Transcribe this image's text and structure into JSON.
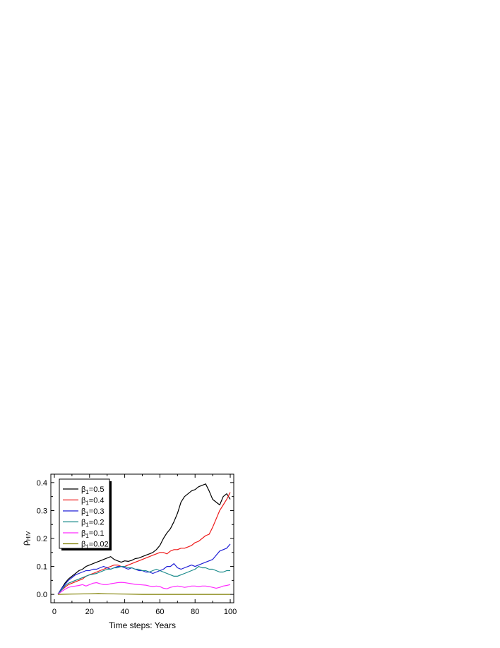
{
  "chart_data": {
    "type": "line",
    "xlabel": "Time steps: Years",
    "ylabel": {
      "main": "ρ",
      "sub": "HIV"
    },
    "xlim": [
      -2,
      102
    ],
    "ylim": [
      -0.03,
      0.43
    ],
    "xticks": [
      0,
      20,
      40,
      60,
      80,
      100
    ],
    "yticks": [
      0.0,
      0.1,
      0.2,
      0.3,
      0.4
    ],
    "xtick_labels": [
      "0",
      "20",
      "40",
      "60",
      "80",
      "100"
    ],
    "ytick_labels": [
      "0.0",
      "0.1",
      "0.2",
      "0.3",
      "0.4"
    ],
    "legend_position": "top-left",
    "series": [
      {
        "name": "β1=0.5",
        "label_main": "β",
        "label_sub": "1",
        "label_rest": "=0.5",
        "color": "#000000",
        "x": [
          2,
          4,
          6,
          8,
          10,
          12,
          14,
          16,
          18,
          20,
          22,
          24,
          26,
          28,
          30,
          32,
          34,
          36,
          38,
          40,
          42,
          44,
          46,
          48,
          50,
          52,
          54,
          56,
          58,
          60,
          62,
          64,
          66,
          68,
          70,
          72,
          74,
          76,
          78,
          80,
          82,
          84,
          86,
          88,
          90,
          92,
          94,
          96,
          98,
          100
        ],
        "y": [
          0.0,
          0.02,
          0.04,
          0.055,
          0.065,
          0.075,
          0.085,
          0.09,
          0.1,
          0.105,
          0.11,
          0.115,
          0.12,
          0.125,
          0.13,
          0.135,
          0.125,
          0.12,
          0.115,
          0.12,
          0.118,
          0.122,
          0.128,
          0.13,
          0.135,
          0.14,
          0.145,
          0.15,
          0.16,
          0.175,
          0.2,
          0.22,
          0.235,
          0.26,
          0.29,
          0.33,
          0.35,
          0.36,
          0.37,
          0.375,
          0.385,
          0.39,
          0.395,
          0.37,
          0.34,
          0.33,
          0.32,
          0.35,
          0.36,
          0.34
        ]
      },
      {
        "name": "β1=0.4",
        "label_main": "β",
        "label_sub": "1",
        "label_rest": "=0.4",
        "color": "#ee1c1c",
        "x": [
          2,
          4,
          6,
          8,
          10,
          12,
          14,
          16,
          18,
          20,
          22,
          24,
          26,
          28,
          30,
          32,
          34,
          36,
          38,
          40,
          42,
          44,
          46,
          48,
          50,
          52,
          54,
          56,
          58,
          60,
          62,
          64,
          66,
          68,
          70,
          72,
          74,
          76,
          78,
          80,
          82,
          84,
          86,
          88,
          90,
          92,
          94,
          96,
          98,
          100
        ],
        "y": [
          0.0,
          0.015,
          0.025,
          0.035,
          0.04,
          0.045,
          0.05,
          0.055,
          0.065,
          0.07,
          0.075,
          0.08,
          0.085,
          0.09,
          0.095,
          0.1,
          0.105,
          0.105,
          0.1,
          0.1,
          0.105,
          0.11,
          0.115,
          0.12,
          0.125,
          0.13,
          0.135,
          0.14,
          0.145,
          0.15,
          0.15,
          0.145,
          0.155,
          0.16,
          0.16,
          0.165,
          0.165,
          0.17,
          0.175,
          0.185,
          0.19,
          0.2,
          0.21,
          0.215,
          0.24,
          0.27,
          0.3,
          0.32,
          0.34,
          0.365
        ]
      },
      {
        "name": "β1=0.3",
        "label_main": "β",
        "label_sub": "1",
        "label_rest": "=0.3",
        "color": "#1f1fd6",
        "x": [
          2,
          4,
          6,
          8,
          10,
          12,
          14,
          16,
          18,
          20,
          22,
          24,
          26,
          28,
          30,
          32,
          34,
          36,
          38,
          40,
          42,
          44,
          46,
          48,
          50,
          52,
          54,
          56,
          58,
          60,
          62,
          64,
          66,
          68,
          70,
          72,
          74,
          76,
          78,
          80,
          82,
          84,
          86,
          88,
          90,
          92,
          94,
          96,
          98,
          100
        ],
        "y": [
          0.0,
          0.02,
          0.035,
          0.05,
          0.06,
          0.07,
          0.075,
          0.08,
          0.085,
          0.085,
          0.09,
          0.09,
          0.095,
          0.1,
          0.095,
          0.09,
          0.095,
          0.1,
          0.1,
          0.095,
          0.09,
          0.095,
          0.09,
          0.085,
          0.085,
          0.08,
          0.08,
          0.075,
          0.08,
          0.085,
          0.09,
          0.1,
          0.1,
          0.11,
          0.095,
          0.09,
          0.095,
          0.1,
          0.105,
          0.1,
          0.105,
          0.11,
          0.115,
          0.12,
          0.125,
          0.14,
          0.155,
          0.16,
          0.165,
          0.18
        ]
      },
      {
        "name": "β1=0.2",
        "label_main": "β",
        "label_sub": "1",
        "label_rest": "=0.2",
        "color": "#1a8a8a",
        "x": [
          2,
          4,
          6,
          8,
          10,
          12,
          14,
          16,
          18,
          20,
          22,
          24,
          26,
          28,
          30,
          32,
          34,
          36,
          38,
          40,
          42,
          44,
          46,
          48,
          50,
          52,
          54,
          56,
          58,
          60,
          62,
          64,
          66,
          68,
          70,
          72,
          74,
          76,
          78,
          80,
          82,
          84,
          86,
          88,
          90,
          92,
          94,
          96,
          98,
          100
        ],
        "y": [
          0.0,
          0.015,
          0.03,
          0.04,
          0.045,
          0.05,
          0.055,
          0.06,
          0.065,
          0.07,
          0.072,
          0.075,
          0.08,
          0.085,
          0.09,
          0.09,
          0.095,
          0.095,
          0.1,
          0.1,
          0.095,
          0.095,
          0.09,
          0.09,
          0.085,
          0.085,
          0.08,
          0.085,
          0.09,
          0.085,
          0.08,
          0.075,
          0.07,
          0.065,
          0.065,
          0.07,
          0.075,
          0.08,
          0.085,
          0.09,
          0.1,
          0.095,
          0.095,
          0.09,
          0.09,
          0.085,
          0.08,
          0.08,
          0.085,
          0.085
        ]
      },
      {
        "name": "β1=0.1",
        "label_main": "β",
        "label_sub": "1",
        "label_rest": "=0.1",
        "color": "#ff2bff",
        "x": [
          2,
          4,
          6,
          8,
          10,
          12,
          14,
          16,
          18,
          20,
          22,
          24,
          26,
          28,
          30,
          32,
          34,
          36,
          38,
          40,
          42,
          44,
          46,
          48,
          50,
          52,
          54,
          56,
          58,
          60,
          62,
          64,
          66,
          68,
          70,
          72,
          74,
          76,
          78,
          80,
          82,
          84,
          86,
          88,
          90,
          92,
          94,
          96,
          98,
          100
        ],
        "y": [
          0.0,
          0.01,
          0.018,
          0.025,
          0.028,
          0.03,
          0.032,
          0.035,
          0.03,
          0.035,
          0.04,
          0.042,
          0.038,
          0.035,
          0.035,
          0.038,
          0.04,
          0.042,
          0.043,
          0.042,
          0.04,
          0.038,
          0.036,
          0.035,
          0.034,
          0.033,
          0.03,
          0.028,
          0.03,
          0.028,
          0.022,
          0.02,
          0.025,
          0.028,
          0.03,
          0.028,
          0.025,
          0.027,
          0.03,
          0.03,
          0.028,
          0.03,
          0.03,
          0.028,
          0.025,
          0.022,
          0.025,
          0.03,
          0.032,
          0.035
        ]
      },
      {
        "name": "β1=0.02",
        "label_main": "β",
        "label_sub": "1",
        "label_rest": "=0.02",
        "color": "#7f7f00",
        "x": [
          2,
          10,
          20,
          25,
          30,
          40,
          50,
          60,
          70,
          80,
          90,
          100
        ],
        "y": [
          0.0,
          0.001,
          0.002,
          0.003,
          0.002,
          0.001,
          0.0,
          0.0,
          0.0,
          0.0,
          0.0,
          0.0
        ]
      }
    ]
  }
}
